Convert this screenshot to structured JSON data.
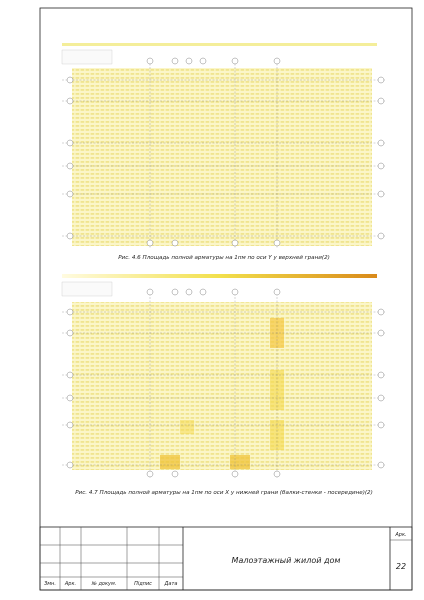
{
  "figures": [
    {
      "caption": "Рис. 4.6 Площадь полной арматуры на 1пм по оси Y у верхней грани(2)"
    },
    {
      "caption": "Рис. 4.7 Площадь полной арматуры на 1пм по оси X у нижней грани (балки-стенки - посередине)(2)"
    }
  ],
  "title_block": {
    "headers": [
      "Змн.",
      "Арк.",
      "№ докум.",
      "Підпис",
      "Дата"
    ],
    "title": "Малоэтажный жилой дом",
    "sheet_label": "Арк.",
    "sheet_number": "22"
  }
}
